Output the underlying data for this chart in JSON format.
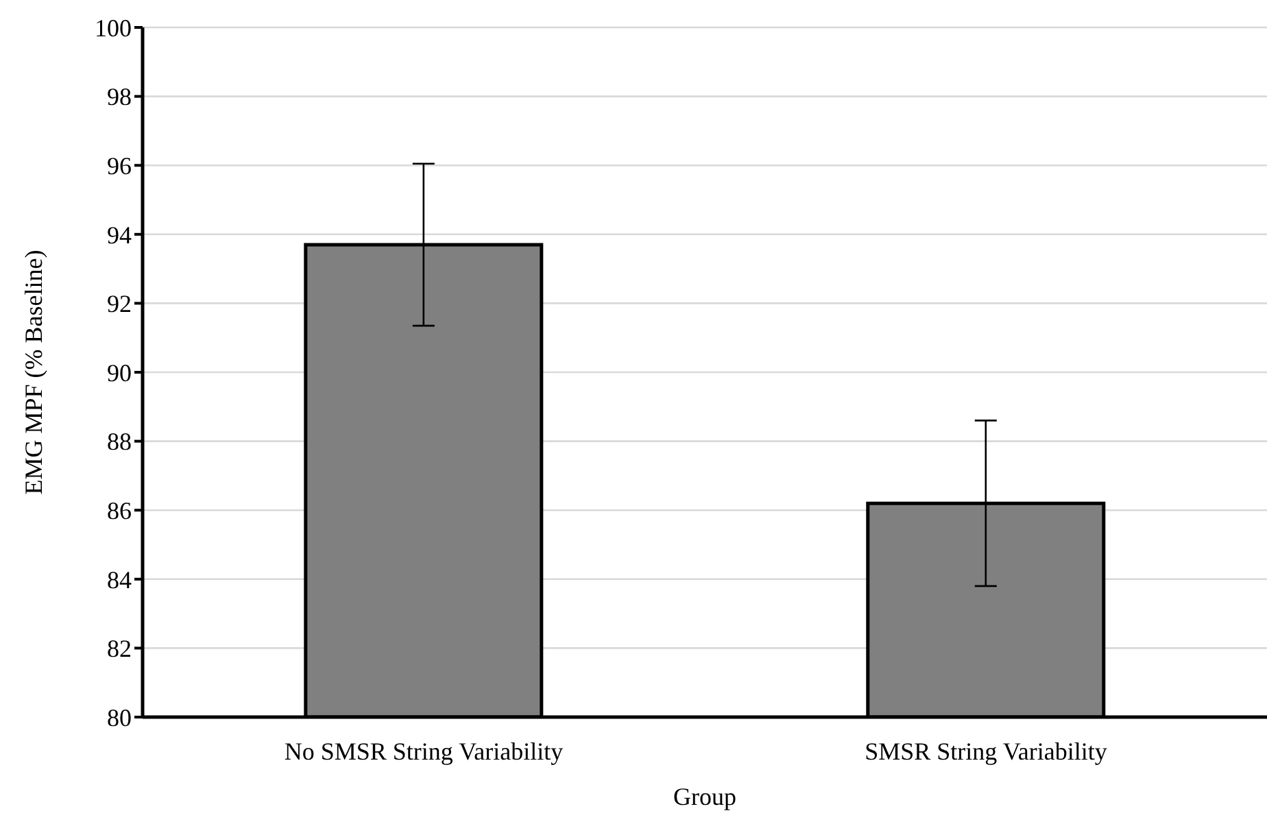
{
  "chart_data": {
    "type": "bar",
    "xlabel": "Group",
    "ylabel": "EMG MPF (% Baseline)",
    "categories": [
      "No SMSR String Variability",
      "SMSR String Variability"
    ],
    "values": [
      93.7,
      86.2
    ],
    "color": "#808080",
    "errors": [
      2.35,
      2.4
    ],
    "ylim": [
      80,
      100
    ],
    "yticks": [
      80,
      82,
      84,
      86,
      88,
      90,
      92,
      94,
      96,
      98,
      100
    ],
    "grid": "y"
  }
}
